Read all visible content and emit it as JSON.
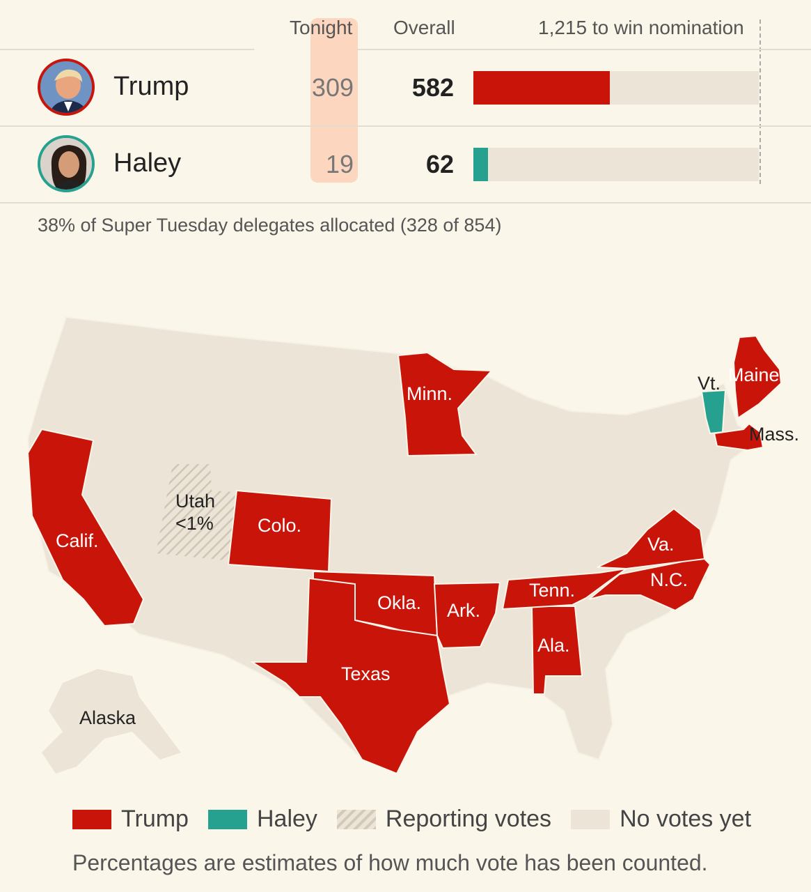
{
  "header": {
    "tonight_label": "Tonight",
    "overall_label": "Overall",
    "threshold_label": "1,215 to win nomination"
  },
  "threshold_delegates": 1215,
  "candidates": [
    {
      "name": "Trump",
      "tonight": "309",
      "overall": "582",
      "overall_value": 582,
      "color": "#c9140a"
    },
    {
      "name": "Haley",
      "tonight": "19",
      "overall": "62",
      "overall_value": 62,
      "color": "#26a08f"
    }
  ],
  "allocated_text": "38% of Super Tuesday delegates allocated (328 of 854)",
  "map": {
    "states": [
      {
        "name": "Calif.",
        "winner": "Trump"
      },
      {
        "name": "Utah",
        "status": "reporting",
        "pct": "<1%"
      },
      {
        "name": "Colo.",
        "winner": "Trump"
      },
      {
        "name": "Minn.",
        "winner": "Trump"
      },
      {
        "name": "Okla.",
        "winner": "Trump"
      },
      {
        "name": "Ark.",
        "winner": "Trump"
      },
      {
        "name": "Texas",
        "winner": "Trump"
      },
      {
        "name": "Tenn.",
        "winner": "Trump"
      },
      {
        "name": "Ala.",
        "winner": "Trump"
      },
      {
        "name": "Va.",
        "winner": "Trump"
      },
      {
        "name": "N.C.",
        "winner": "Trump"
      },
      {
        "name": "Maine",
        "winner": "Trump"
      },
      {
        "name": "Mass.",
        "winner": "Trump"
      },
      {
        "name": "Vt.",
        "winner": "Haley"
      },
      {
        "name": "Alaska",
        "status": "no votes"
      }
    ]
  },
  "legend": [
    {
      "label": "Trump",
      "color": "#c9140a"
    },
    {
      "label": "Haley",
      "color": "#26a08f"
    },
    {
      "label": "Reporting votes",
      "color": "hatched"
    },
    {
      "label": "No votes yet",
      "color": "#ece4d6"
    }
  ],
  "note": "Percentages are estimates of how much vote has been counted."
}
